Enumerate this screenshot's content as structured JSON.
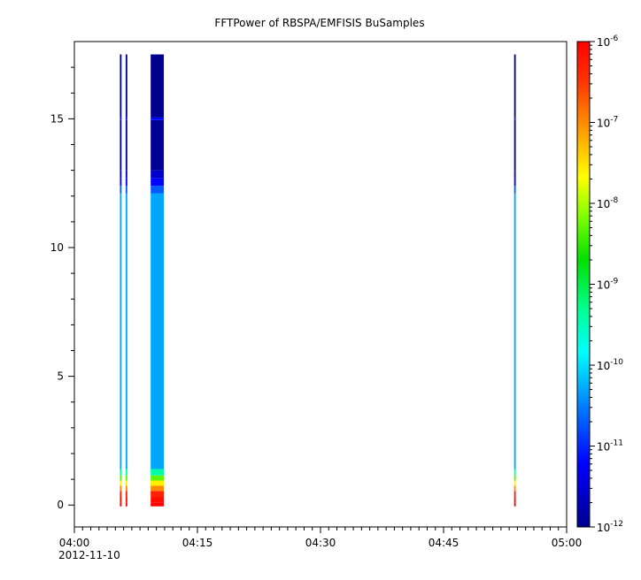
{
  "chart_data": {
    "type": "heatmap",
    "title": "FFTPower of RBSPA/EMFISIS  BuSamples",
    "xlabel": "",
    "ylabel": "",
    "x_axis": {
      "range": [
        "04:00",
        "05:00"
      ],
      "ticks": [
        "04:00",
        "04:15",
        "04:30",
        "04:45",
        "05:00"
      ],
      "tick_minutes": [
        0,
        15,
        30,
        45,
        60
      ],
      "date_label": "2012-11-10"
    },
    "y_axis": {
      "range": [
        -0.85,
        18.0
      ],
      "ticks": [
        0,
        5,
        10,
        15
      ]
    },
    "colorbar": {
      "scale": "log",
      "range": [
        1e-12,
        1e-06
      ],
      "ticks": [
        {
          "value": 1e-06,
          "base": "10",
          "exp": "-6"
        },
        {
          "value": 1e-07,
          "base": "10",
          "exp": "-7"
        },
        {
          "value": 1e-08,
          "base": "10",
          "exp": "-8"
        },
        {
          "value": 1e-09,
          "base": "10",
          "exp": "-9"
        },
        {
          "value": 1e-10,
          "base": "10",
          "exp": "-10"
        },
        {
          "value": 1e-11,
          "base": "10",
          "exp": "-11"
        },
        {
          "value": 1e-12,
          "base": "10",
          "exp": "-12"
        }
      ],
      "colormap": "rainbow (dark blue to red)"
    },
    "grid": false,
    "data_columns": [
      {
        "t_start_min": 5.55,
        "t_end_min": 5.75
      },
      {
        "t_start_min": 6.25,
        "t_end_min": 6.45
      },
      {
        "t_start_min": 9.3,
        "t_end_min": 10.9
      },
      {
        "t_start_min": 53.6,
        "t_end_min": 53.8
      }
    ],
    "frequency_profile": [
      {
        "y0": -0.05,
        "y1": 0.1,
        "log_power": -6.0
      },
      {
        "y0": 0.1,
        "y1": 0.3,
        "log_power": -6.1
      },
      {
        "y0": 0.3,
        "y1": 0.55,
        "log_power": -6.3
      },
      {
        "y0": 0.55,
        "y1": 0.75,
        "log_power": -7.0
      },
      {
        "y0": 0.75,
        "y1": 0.95,
        "log_power": -7.6
      },
      {
        "y0": 0.95,
        "y1": 1.15,
        "log_power": -8.3
      },
      {
        "y0": 1.15,
        "y1": 1.4,
        "log_power": -9.4
      },
      {
        "y0": 1.4,
        "y1": 12.1,
        "log_power": -10.3
      },
      {
        "y0": 12.1,
        "y1": 12.4,
        "log_power": -10.7
      },
      {
        "y0": 12.4,
        "y1": 12.7,
        "log_power": -11.2
      },
      {
        "y0": 12.7,
        "y1": 13.0,
        "log_power": -11.6
      },
      {
        "y0": 13.0,
        "y1": 14.95,
        "log_power": -11.95
      },
      {
        "y0": 14.95,
        "y1": 15.05,
        "log_power": -11.2
      },
      {
        "y0": 15.05,
        "y1": 17.5,
        "log_power": -12.0
      }
    ]
  }
}
